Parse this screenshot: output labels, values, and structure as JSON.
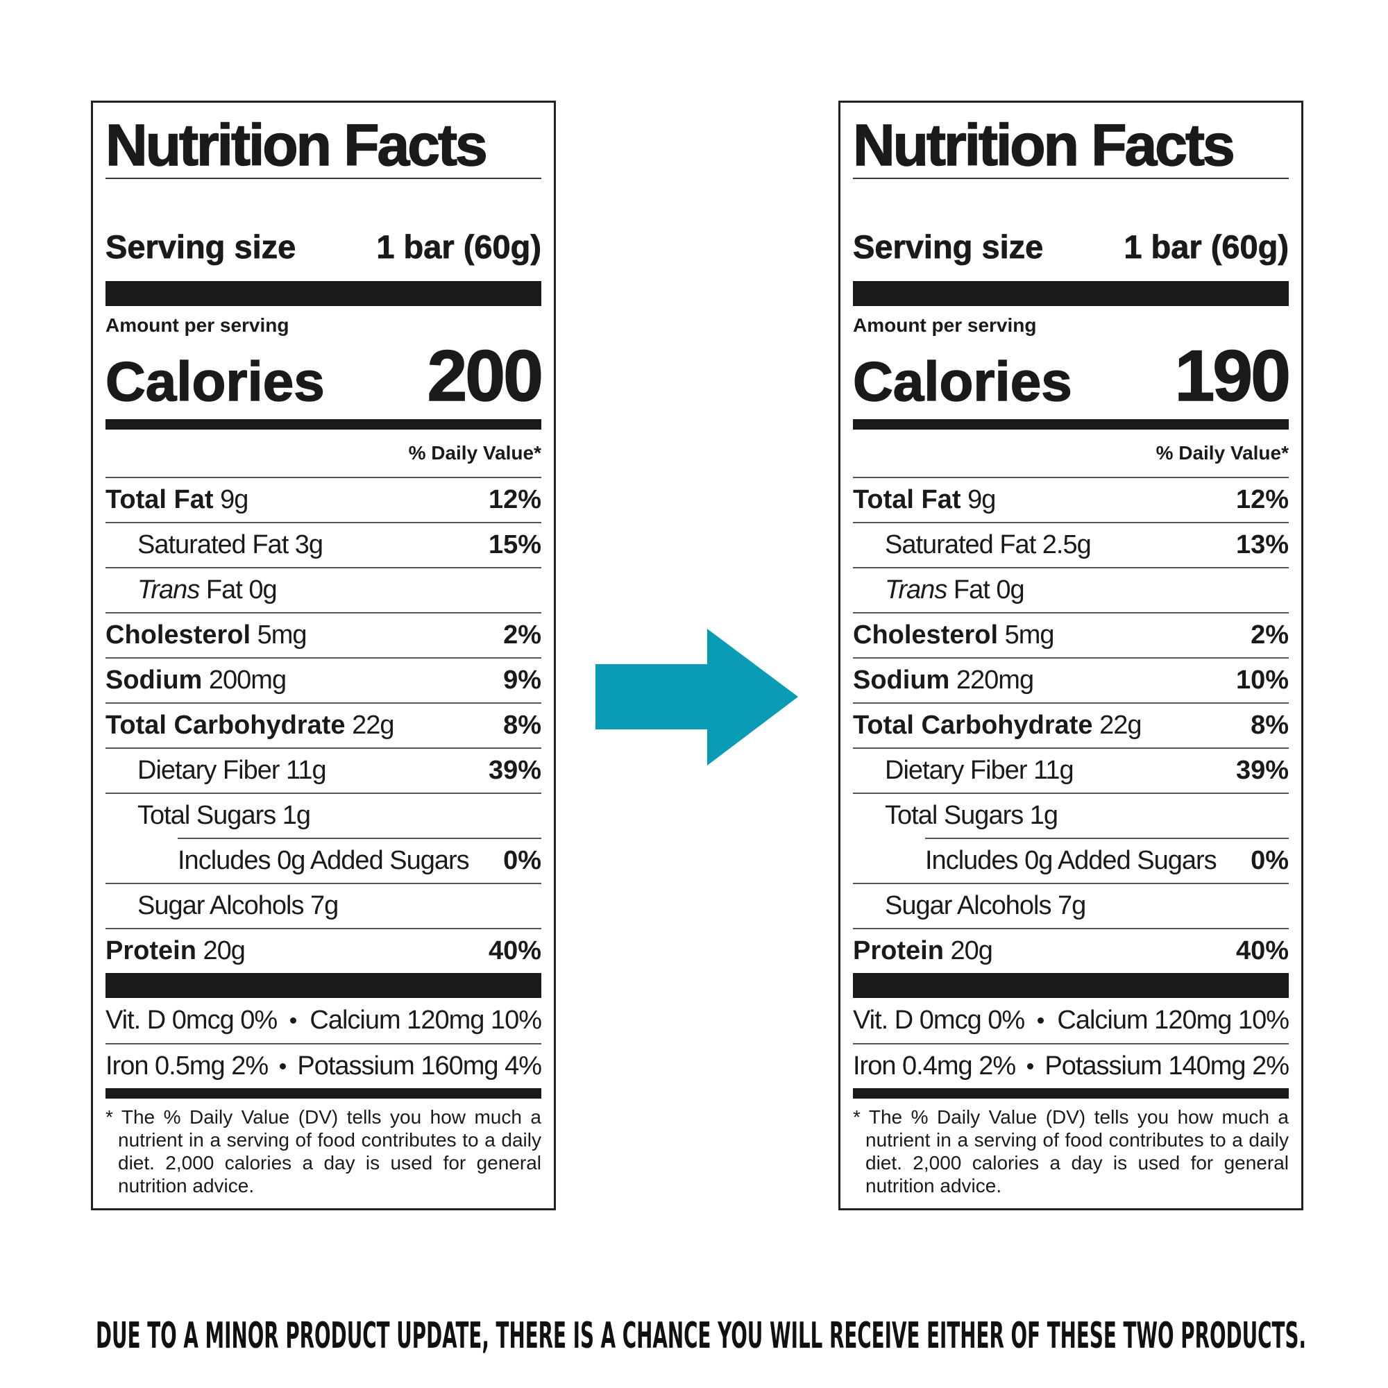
{
  "labels": [
    {
      "title": "Nutrition Facts",
      "serving_label": "Serving size",
      "serving_value": "1 bar (60g)",
      "amount_per_serving": "Amount per serving",
      "calories_label": "Calories",
      "calories": 200,
      "daily_value_header": "% Daily Value*",
      "rows": [
        {
          "bold": "Total Fat",
          "text": "9g",
          "dv": "12%"
        },
        {
          "text": "Saturated Fat 3g",
          "dv": "15%"
        },
        {
          "italic": "Trans",
          "text": "Fat 0g"
        },
        {
          "bold": "Cholesterol",
          "text": "5mg",
          "dv": "2%"
        },
        {
          "bold": "Sodium",
          "text": "200mg",
          "dv": "9%"
        },
        {
          "bold": "Total Carbohydrate",
          "text": "22g",
          "dv": "8%"
        },
        {
          "text": "Dietary Fiber 11g",
          "dv": "39%"
        },
        {
          "text": "Total Sugars 1g",
          "sub": [
            {
              "text": "Includes 0g Added Sugars",
              "dv": "0%"
            }
          ]
        },
        {
          "text": "Sugar Alcohols 7g"
        },
        {
          "bold": "Protein",
          "text": "20g",
          "dv": "40%"
        }
      ],
      "vitamins": [
        [
          "Vit. D 0mcg 0%",
          "Calcium 120mg 10%"
        ],
        [
          "Iron 0.5mg 2%",
          "Potassium 160mg 4%"
        ]
      ],
      "footnote": "* The % Daily Value (DV) tells you how much a nutrient in a serving of food contributes to a daily diet. 2,000 calories a day is used for general nutrition advice."
    },
    {
      "title": "Nutrition Facts",
      "serving_label": "Serving size",
      "serving_value": "1 bar (60g)",
      "amount_per_serving": "Amount per serving",
      "calories_label": "Calories",
      "calories": 190,
      "daily_value_header": "% Daily Value*",
      "rows": [
        {
          "bold": "Total Fat",
          "text": "9g",
          "dv": "12%"
        },
        {
          "text": "Saturated Fat 2.5g",
          "dv": "13%"
        },
        {
          "italic": "Trans",
          "text": "Fat 0g"
        },
        {
          "bold": "Cholesterol",
          "text": "5mg",
          "dv": "2%"
        },
        {
          "bold": "Sodium",
          "text": "220mg",
          "dv": "10%"
        },
        {
          "bold": "Total Carbohydrate",
          "text": "22g",
          "dv": "8%"
        },
        {
          "text": "Dietary Fiber 11g",
          "dv": "39%"
        },
        {
          "text": "Total Sugars 1g",
          "sub": [
            {
              "text": "Includes 0g Added Sugars",
              "dv": "0%"
            }
          ]
        },
        {
          "text": "Sugar Alcohols 7g"
        },
        {
          "bold": "Protein",
          "text": "20g",
          "dv": "40%"
        }
      ],
      "vitamins": [
        [
          "Vit. D 0mcg 0%",
          "Calcium 120mg 10%"
        ],
        [
          "Iron 0.4mg 2%",
          "Potassium 140mg 2%"
        ]
      ],
      "footnote": "* The % Daily Value (DV) tells you how much a nutrient in a serving of food contributes to a daily diet. 2,000 calories a day is used for general nutrition advice."
    }
  ],
  "notice": "DUE TO A MINOR PRODUCT UPDATE, THERE IS A CHANCE YOU WILL RECEIVE EITHER OF THESE TWO PRODUCTS."
}
